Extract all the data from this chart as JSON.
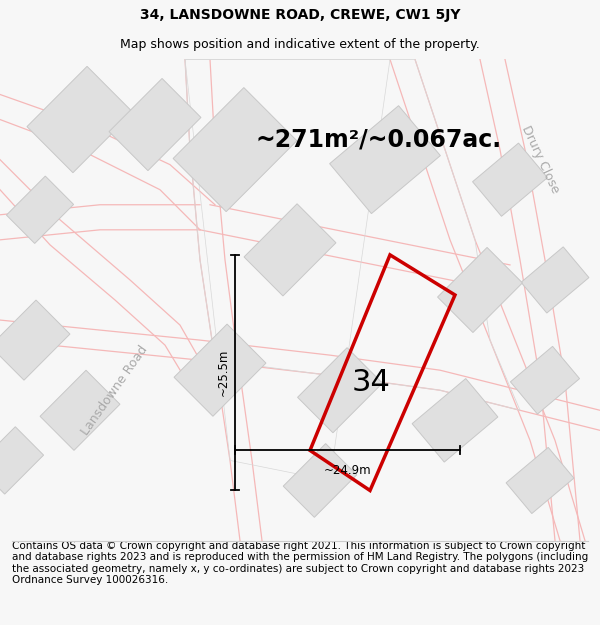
{
  "title": "34, LANSDOWNE ROAD, CREWE, CW1 5JY",
  "subtitle": "Map shows position and indicative extent of the property.",
  "area_text": "~271m²/~0.067ac.",
  "number_label": "34",
  "dim_width": "~24.9m",
  "dim_height": "~25.5m",
  "road_label_left": "Lansdowne Road",
  "road_label_right": "Drury Close",
  "footer": "Contains OS data © Crown copyright and database right 2021. This information is subject to Crown copyright and database rights 2023 and is reproduced with the permission of HM Land Registry. The polygons (including the associated geometry, namely x, y co-ordinates) are subject to Crown copyright and database rights 2023 Ordnance Survey 100026316.",
  "bg_color": "#f7f7f7",
  "map_bg": "#ffffff",
  "plot_color": "#cc0000",
  "building_color": "#e0e0e0",
  "building_edge": "#c8c8c8",
  "road_line_color": "#f5b8b8",
  "road_outline_color": "#d8d8d8",
  "title_fontsize": 10,
  "subtitle_fontsize": 9,
  "area_fontsize": 17,
  "number_fontsize": 22,
  "footer_fontsize": 7.5,
  "road_label_fontsize": 9
}
